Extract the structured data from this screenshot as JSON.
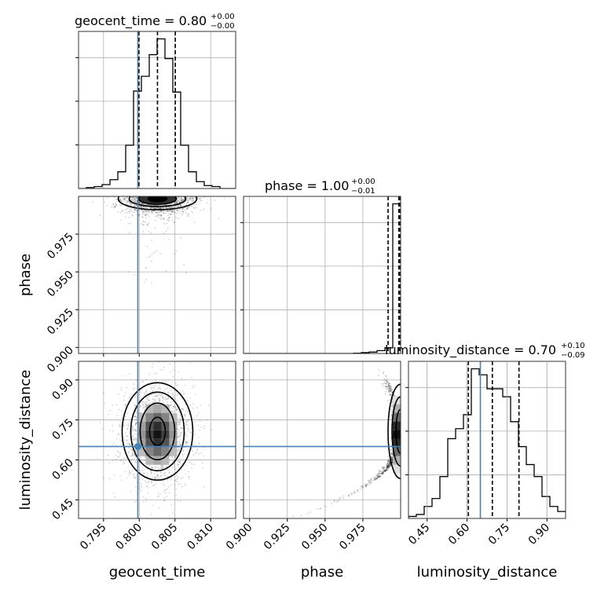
{
  "chart_data": {
    "type": "corner",
    "parameters": [
      "geocent_time",
      "phase",
      "luminosity_distance"
    ],
    "titles": [
      {
        "param": "geocent_time",
        "name": "geocent_time",
        "median": "0.80",
        "plus": "+0.00",
        "minus": "−0.00"
      },
      {
        "param": "phase",
        "name": "phase",
        "median": "1.00",
        "plus": "+0.00",
        "minus": "−0.01"
      },
      {
        "param": "luminosity_distance",
        "name": "luminosity_distance",
        "median": "0.70",
        "plus": "+0.10",
        "minus": "−0.09"
      }
    ],
    "ranges": {
      "geocent_time": [
        0.7915,
        0.8135
      ],
      "phase": [
        0.896,
        1.0
      ],
      "luminosity_distance": [
        0.38,
        0.97
      ]
    },
    "ticks": {
      "geocent_time": [
        0.795,
        0.8,
        0.805,
        0.81
      ],
      "phase": [
        0.9,
        0.925,
        0.95,
        0.975
      ],
      "luminosity_distance": [
        0.45,
        0.6,
        0.75,
        0.9
      ]
    },
    "tick_labels": {
      "geocent_time": [
        "0.795",
        "0.800",
        "0.805",
        "0.810"
      ],
      "phase": [
        "0.900",
        "0.925",
        "0.950",
        "0.975"
      ],
      "luminosity_distance": [
        "0.45",
        "0.60",
        "0.75",
        "0.90"
      ]
    },
    "truths": {
      "geocent_time": 0.7998,
      "phase": null,
      "luminosity_distance": 0.65
    },
    "truth_color": "#4682b4",
    "quantiles": {
      "geocent_time": [
        0.79995,
        0.80255,
        0.80505
      ],
      "phase": [
        0.9917,
        0.9988,
        0.9997
      ],
      "luminosity_distance": [
        0.605,
        0.695,
        0.795
      ]
    },
    "histograms": {
      "geocent_time": {
        "bin_edges": [
          0.7915,
          0.7926,
          0.7937,
          0.7948,
          0.7959,
          0.797,
          0.7981,
          0.7992,
          0.8003,
          0.8014,
          0.8025,
          0.8036,
          0.8047,
          0.8058,
          0.8069,
          0.808,
          0.8091,
          0.8102,
          0.8113,
          0.8124,
          0.8135
        ],
        "counts": [
          0,
          1,
          2,
          4,
          9,
          17,
          44,
          99,
          114,
          136,
          152,
          132,
          98,
          44,
          17,
          7,
          3,
          2,
          0,
          0
        ]
      },
      "phase": {
        "bin_edges": [
          0.896,
          0.9012,
          0.9064,
          0.9116,
          0.9168,
          0.922,
          0.9272,
          0.9324,
          0.9376,
          0.9428,
          0.948,
          0.9532,
          0.9584,
          0.9636,
          0.9688,
          0.974,
          0.9792,
          0.9844,
          0.9896,
          0.9948,
          1.0
        ],
        "counts": [
          0,
          0,
          0,
          0,
          0,
          0,
          0,
          0,
          0,
          0,
          0,
          0,
          0,
          0,
          1,
          3,
          5,
          10,
          20,
          530
        ]
      },
      "luminosity_distance": {
        "bin_edges": [
          0.38,
          0.4095,
          0.439,
          0.4685,
          0.498,
          0.5275,
          0.557,
          0.5865,
          0.616,
          0.6455,
          0.675,
          0.7045,
          0.734,
          0.7635,
          0.793,
          0.8225,
          0.852,
          0.8815,
          0.911,
          0.9405,
          0.97
        ],
        "counts": [
          2,
          4,
          12,
          20,
          42,
          80,
          90,
          104,
          150,
          144,
          130,
          130,
          122,
          97,
          72,
          54,
          42,
          22,
          12,
          7
        ]
      }
    },
    "colors": {
      "line": "#000000",
      "truth": "#4682b4",
      "grid": "#b0b0b0"
    }
  }
}
